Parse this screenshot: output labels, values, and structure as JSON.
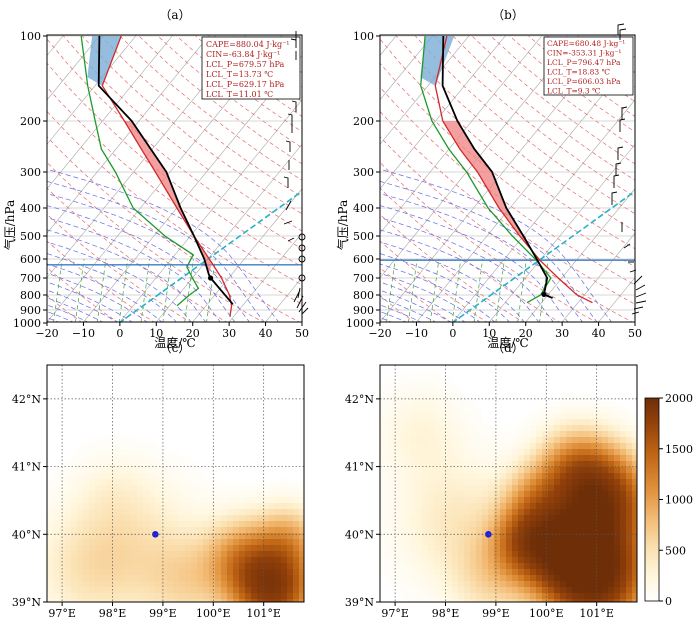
{
  "chart_data": [
    {
      "type": "skew-t",
      "panel_label": "（a）",
      "xlabel": "温度/℃",
      "ylabel": "气压/hPa",
      "xlim": [
        -20,
        50
      ],
      "x_ticks": [
        -20,
        -10,
        0,
        10,
        20,
        30,
        40,
        50
      ],
      "ylim": [
        1000,
        100
      ],
      "y_ticks": [
        100,
        200,
        300,
        400,
        500,
        600,
        700,
        800,
        900,
        1000
      ],
      "annotation": [
        "CAPE=880.04 J·kg⁻¹",
        "CIN=-63.84 J·kg⁻¹",
        "LCL_P=679.57 hPa",
        "LCL_T=13.73 ℃",
        "LCL_P=629.17 hPa",
        "LCL_T=11.01 ℃"
      ],
      "series": [
        {
          "role": "temperature",
          "p": [
            950,
            870,
            800,
            700,
            620,
            500,
            400,
            300,
            250,
            200,
            150,
            100
          ],
          "t": [
            29,
            27,
            24,
            18,
            12,
            1,
            -10,
            -24,
            -33,
            -44,
            -58,
            -64
          ]
        },
        {
          "role": "dewpoint",
          "p": [
            870,
            800,
            760,
            700,
            640,
            580,
            500,
            400,
            300,
            250,
            200,
            150,
            100
          ],
          "t": [
            12,
            13,
            14,
            10,
            6,
            5,
            -7,
            -22,
            -35,
            -44,
            -52,
            -62,
            -75
          ]
        },
        {
          "role": "parcel",
          "p": [
            860,
            700,
            680,
            600,
            500,
            400,
            300,
            200,
            150,
            100
          ],
          "t": [
            27,
            15,
            13.7,
            9,
            1,
            -9,
            -21,
            -42,
            -59,
            -70
          ]
        }
      ],
      "highlight_level_hpa": 629
    },
    {
      "type": "skew-t",
      "panel_label": "（b）",
      "xlabel": "温度/℃",
      "ylabel": "气压/hPa",
      "xlim": [
        -20,
        50
      ],
      "x_ticks": [
        -20,
        -10,
        0,
        10,
        20,
        30,
        40,
        50
      ],
      "ylim": [
        1000,
        100
      ],
      "y_ticks": [
        100,
        200,
        300,
        400,
        500,
        600,
        700,
        800,
        900,
        1000
      ],
      "annotation": [
        "CAPE=680.48 J·kg⁻¹",
        "CIN=-353.31 J·kg⁻¹",
        "LCL_P=796.47 hPa",
        "LCL_T=18.83 ℃",
        "LCL_P=606.03 hPa",
        "LCL_T=9.3 ℃"
      ],
      "series": [
        {
          "role": "temperature",
          "p": [
            850,
            800,
            700,
            606,
            500,
            400,
            300,
            250,
            200,
            150,
            100
          ],
          "t": [
            34,
            28,
            19,
            10,
            -1,
            -13,
            -27,
            -37,
            -48,
            -58,
            -66
          ]
        },
        {
          "role": "dewpoint",
          "p": [
            850,
            800,
            700,
            606,
            500,
            400,
            300,
            250,
            200,
            150,
            100
          ],
          "t": [
            16,
            18,
            17,
            9,
            -3,
            -16,
            -30,
            -40,
            -51,
            -62,
            -72
          ]
        },
        {
          "role": "parcel",
          "p": [
            820,
            796,
            700,
            606,
            500,
            400,
            300,
            250,
            200,
            150,
            100
          ],
          "t": [
            22,
            18.8,
            16,
            9.3,
            0,
            -11,
            -23,
            -33,
            -44,
            -56,
            -67
          ]
        }
      ],
      "highlight_level_hpa": 606
    },
    {
      "type": "heatmap",
      "panel_label": "（c）",
      "x_ticks": [
        "97°E",
        "98°E",
        "99°E",
        "100°E",
        "101°E"
      ],
      "y_ticks": [
        "39°N",
        "40°N",
        "41°N",
        "42°N"
      ],
      "xlim": [
        96.7,
        101.8
      ],
      "ylim": [
        39,
        42.5
      ],
      "station": {
        "lon": 98.85,
        "lat": 40.0
      },
      "blobs": [
        {
          "lon": 101.2,
          "lat": 39.2,
          "r": 0.7,
          "v": 1500
        },
        {
          "lon": 100.6,
          "lat": 39.6,
          "r": 0.7,
          "v": 700
        },
        {
          "lon": 101.5,
          "lat": 39.9,
          "r": 0.6,
          "v": 500
        },
        {
          "lon": 98.5,
          "lat": 39.8,
          "r": 1.2,
          "v": 200
        },
        {
          "lon": 97.5,
          "lat": 39.5,
          "r": 1.0,
          "v": 200
        },
        {
          "lon": 99.5,
          "lat": 39.3,
          "r": 0.8,
          "v": 250
        },
        {
          "lon": 98.0,
          "lat": 40.6,
          "r": 0.7,
          "v": 80
        }
      ]
    },
    {
      "type": "heatmap",
      "panel_label": "（d）",
      "x_ticks": [
        "97°E",
        "98°E",
        "99°E",
        "100°E",
        "101°E"
      ],
      "y_ticks": [
        "39°N",
        "40°N",
        "41°N",
        "42°N"
      ],
      "xlim": [
        96.7,
        101.8
      ],
      "ylim": [
        39,
        42.5
      ],
      "station": {
        "lon": 98.85,
        "lat": 40.0
      },
      "colorbar": {
        "ticks": [
          0,
          500,
          1000,
          1500,
          2000
        ],
        "vmin": 0,
        "vmax": 2000
      },
      "blobs": [
        {
          "lon": 101.0,
          "lat": 39.4,
          "r": 0.9,
          "v": 1900
        },
        {
          "lon": 100.4,
          "lat": 39.8,
          "r": 0.8,
          "v": 1500
        },
        {
          "lon": 101.2,
          "lat": 40.5,
          "r": 0.8,
          "v": 1400
        },
        {
          "lon": 100.6,
          "lat": 40.9,
          "r": 0.7,
          "v": 900
        },
        {
          "lon": 99.6,
          "lat": 39.9,
          "r": 0.6,
          "v": 900
        },
        {
          "lon": 99.8,
          "lat": 40.5,
          "r": 0.6,
          "v": 500
        },
        {
          "lon": 98.2,
          "lat": 40.2,
          "r": 1.1,
          "v": 200
        },
        {
          "lon": 97.5,
          "lat": 41.5,
          "r": 0.8,
          "v": 120
        },
        {
          "lon": 99.0,
          "lat": 39.4,
          "r": 0.8,
          "v": 300
        }
      ]
    }
  ]
}
